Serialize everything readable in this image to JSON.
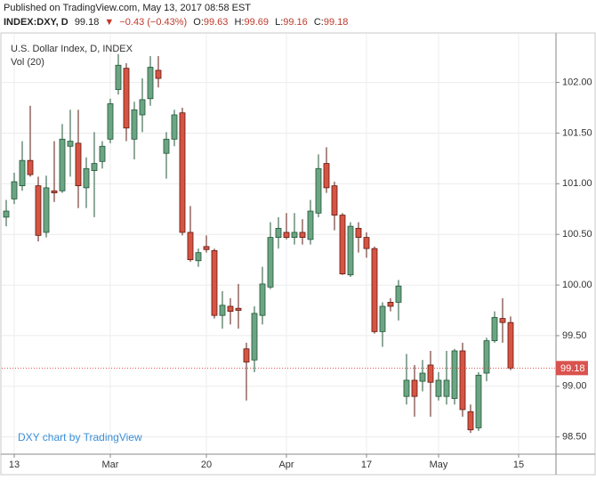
{
  "header": {
    "published": "Published on TradingView.com, May 13, 2017 08:58 EST",
    "symbol": "INDEX:DXY, D",
    "last": "99.18",
    "arrow": "▼",
    "change": "−0.43 (−0.43%)",
    "ohlc": [
      {
        "label": "O:",
        "value": "99.63"
      },
      {
        "label": "H:",
        "value": "99.69"
      },
      {
        "label": "L:",
        "value": "99.16"
      },
      {
        "label": "C:",
        "value": "99.18"
      }
    ]
  },
  "chart_data": {
    "type": "candlestick",
    "title": "U.S. Dollar Index, D, INDEX",
    "indicator": "Vol (20)",
    "watermark": "DXY chart by TradingView",
    "up_color": "#6ba583",
    "up_border": "#225437",
    "down_color": "#d75442",
    "down_border": "#5b1a13",
    "grid": true,
    "categories": [
      null,
      "13",
      null,
      null,
      null,
      null,
      null,
      null,
      null,
      null,
      null,
      null,
      null,
      "Mar",
      null,
      null,
      null,
      null,
      null,
      null,
      null,
      null,
      null,
      null,
      null,
      "20",
      null,
      null,
      null,
      null,
      null,
      null,
      null,
      null,
      null,
      "Apr",
      null,
      null,
      null,
      null,
      null,
      null,
      null,
      null,
      null,
      "17",
      null,
      null,
      null,
      null,
      null,
      null,
      null,
      null,
      "May",
      null,
      null,
      null,
      null,
      null,
      null,
      null,
      null,
      null,
      "15"
    ],
    "open": [
      100.67,
      100.85,
      100.98,
      101.23,
      100.98,
      100.52,
      100.93,
      100.93,
      101.37,
      101.4,
      100.96,
      101.13,
      101.22,
      101.44,
      101.93,
      102.14,
      101.44,
      101.68,
      101.84,
      102.12,
      101.3,
      101.44,
      101.7,
      100.52,
      100.24,
      100.38,
      100.34,
      99.7,
      99.79,
      99.77,
      99.37,
      99.26,
      99.7,
      99.98,
      100.47,
      100.52,
      100.47,
      100.52,
      100.45,
      100.71,
      101.2,
      100.98,
      100.69,
      100.1,
      100.56,
      100.47,
      100.36,
      99.54,
      99.83,
      99.83,
      98.9,
      99.06,
      99.05,
      99.21,
      98.9,
      98.9,
      98.88,
      99.35,
      98.75,
      98.59,
      99.13,
      99.45,
      99.67,
      99.63,
      null
    ],
    "high": [
      100.84,
      101.11,
      101.42,
      101.77,
      101.07,
      101.08,
      101.42,
      101.59,
      101.73,
      101.73,
      101.26,
      101.51,
      101.42,
      101.84,
      102.28,
      102.19,
      101.81,
      102.04,
      102.26,
      102.26,
      101.51,
      101.73,
      101.75,
      100.78,
      100.36,
      100.49,
      100.36,
      99.94,
      99.87,
      100.01,
      99.43,
      99.79,
      100.18,
      100.62,
      100.67,
      100.71,
      100.71,
      100.65,
      100.84,
      101.29,
      101.36,
      101.02,
      100.71,
      100.62,
      100.62,
      100.52,
      100.38,
      99.83,
      99.87,
      100.05,
      99.32,
      99.21,
      99.26,
      99.35,
      99.14,
      99.35,
      99.37,
      99.43,
      98.82,
      99.14,
      99.48,
      99.74,
      99.87,
      99.69,
      null
    ],
    "low": [
      100.58,
      100.8,
      100.93,
      101.07,
      100.43,
      100.47,
      100.82,
      100.91,
      101.07,
      100.76,
      100.76,
      100.67,
      101.15,
      101.4,
      101.88,
      101.42,
      101.24,
      101.51,
      101.77,
      101.95,
      101.05,
      101.37,
      100.49,
      100.23,
      100.18,
      100.32,
      99.67,
      99.57,
      99.61,
      99.57,
      98.86,
      99.14,
      99.61,
      99.96,
      100.36,
      100.45,
      100.4,
      100.4,
      100.4,
      100.67,
      100.91,
      100.54,
      100.1,
      100.08,
      100.32,
      100.27,
      99.52,
      99.39,
      99.74,
      99.65,
      98.82,
      98.7,
      98.95,
      98.7,
      98.86,
      98.82,
      98.82,
      98.7,
      98.54,
      98.56,
      99.05,
      99.43,
      99.43,
      99.16,
      null
    ],
    "close": [
      100.73,
      101.02,
      101.23,
      101.09,
      100.49,
      100.96,
      100.91,
      101.44,
      101.42,
      100.98,
      101.15,
      101.2,
      101.37,
      101.79,
      102.17,
      101.55,
      101.73,
      101.83,
      102.15,
      102.04,
      101.44,
      101.68,
      100.52,
      100.25,
      100.32,
      100.35,
      99.7,
      99.8,
      99.74,
      99.75,
      99.24,
      99.72,
      100.01,
      100.47,
      100.56,
      100.47,
      100.52,
      100.47,
      100.73,
      101.15,
      100.96,
      100.69,
      100.11,
      100.58,
      100.47,
      100.36,
      99.54,
      99.79,
      99.79,
      99.99,
      99.06,
      98.9,
      99.13,
      99.04,
      99.06,
      99.06,
      99.35,
      98.77,
      98.57,
      99.11,
      99.45,
      99.68,
      99.63,
      99.18,
      null
    ],
    "ylim": [
      98.33,
      102.48
    ],
    "yticks": [
      {
        "value": 98.5,
        "label": "98.50"
      },
      {
        "value": 99,
        "label": "99.00"
      },
      {
        "value": 99.5,
        "label": "99.50"
      },
      {
        "value": 100,
        "label": "100.00"
      },
      {
        "value": 100.5,
        "label": "100.50"
      },
      {
        "value": 101,
        "label": "101.00"
      },
      {
        "value": 101.5,
        "label": "101.50"
      },
      {
        "value": 102,
        "label": "102.00"
      }
    ],
    "last_color": "#d9534f"
  }
}
